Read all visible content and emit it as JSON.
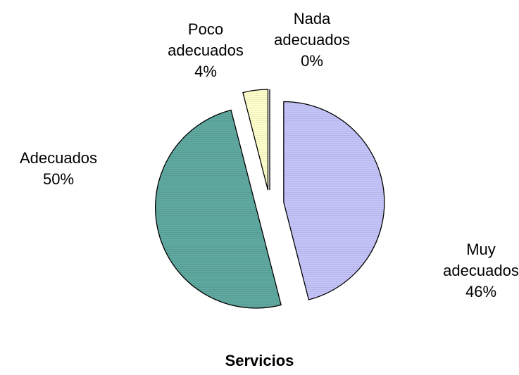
{
  "chart_data": {
    "type": "pie",
    "title": "Servicios",
    "categories": [
      "Muy adecuados",
      "Adecuados",
      "Poco adecuados",
      "Nada adecuados"
    ],
    "values": [
      46,
      50,
      4,
      0
    ],
    "value_labels": [
      "46%",
      "50%",
      "4%",
      "0%"
    ],
    "colors": [
      "#c4c4fa",
      "#5fa9a1",
      "#ffffcc",
      "#ffffcc"
    ]
  }
}
